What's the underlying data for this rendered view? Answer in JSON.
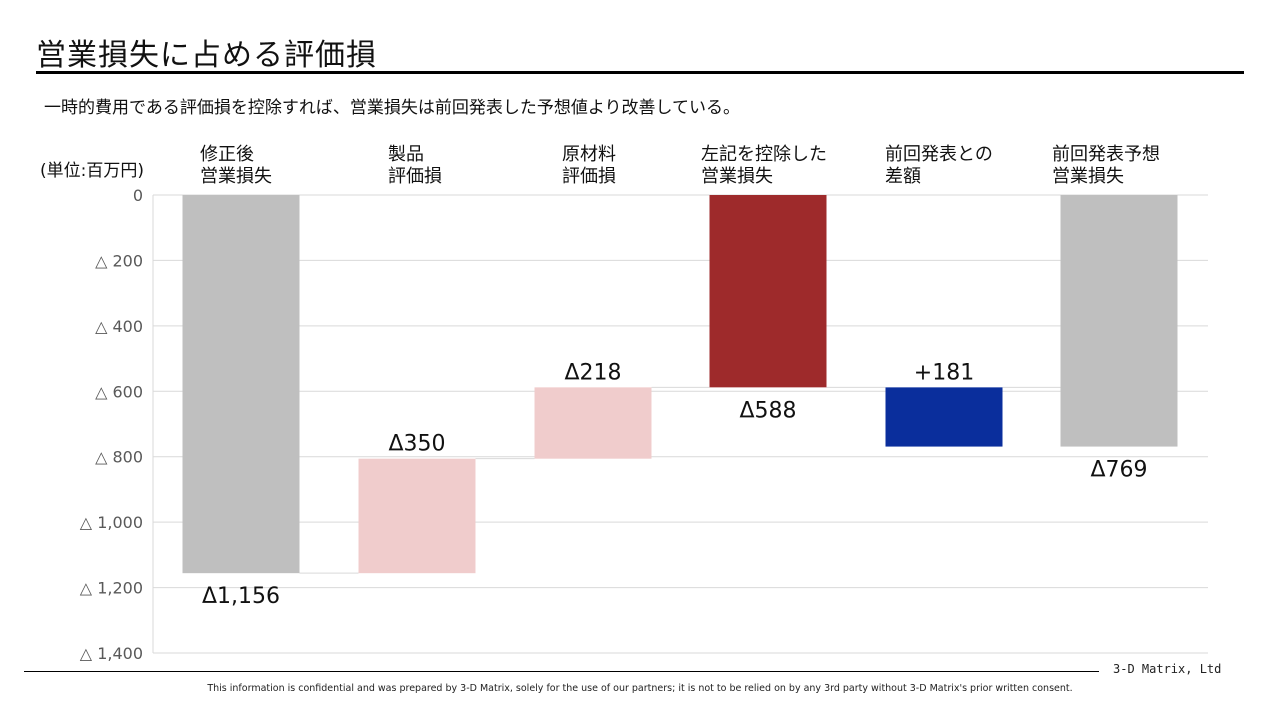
{
  "slide": {
    "title": "営業損失に占める評価損",
    "subtitle": "一時的費用である評価損を控除すれば、営業損失は前回発表した予想値より改善している。",
    "unit_label": "(単位:百万円)"
  },
  "chart_data": {
    "type": "bar",
    "subtype": "waterfall",
    "categories": [
      [
        "修正後",
        "営業損失"
      ],
      [
        "製品",
        "評価損"
      ],
      [
        "原材料",
        "評価損"
      ],
      [
        "左記を控除した",
        "営業損失"
      ],
      [
        "前回発表との",
        "差額"
      ],
      [
        "前回発表予想",
        "営業損失"
      ]
    ],
    "bars": [
      {
        "start": -1156,
        "end": 0,
        "label": "Δ1,156",
        "label_position": "below",
        "color": "#bfbfbf"
      },
      {
        "start": -1156,
        "end": -806,
        "label": "Δ350",
        "label_position": "above",
        "color": "#f0cccc"
      },
      {
        "start": -806,
        "end": -588,
        "label": "Δ218",
        "label_position": "above",
        "color": "#f0cccc"
      },
      {
        "start": -588,
        "end": 0,
        "label": "Δ588",
        "label_position": "below",
        "color": "#9e2a2b"
      },
      {
        "start": -769,
        "end": -588,
        "label": "+181",
        "label_position": "above",
        "color": "#0a2e9c"
      },
      {
        "start": -769,
        "end": 0,
        "label": "Δ769",
        "label_position": "below",
        "color": "#bfbfbf"
      }
    ],
    "y_ticks": [
      "0",
      "△ 200",
      "△ 400",
      "△ 600",
      "△ 800",
      "△ 1,000",
      "△ 1,200",
      "△ 1,400"
    ],
    "ylim": [
      -1400,
      0
    ],
    "grid": true
  },
  "footer": {
    "company": "3-D Matrix, Ltd",
    "disclaimer": "This information is confidential and was prepared by 3-D Matrix, solely for the use of our partners; it is not to be relied on by any 3rd party without 3-D Matrix's prior written consent."
  }
}
